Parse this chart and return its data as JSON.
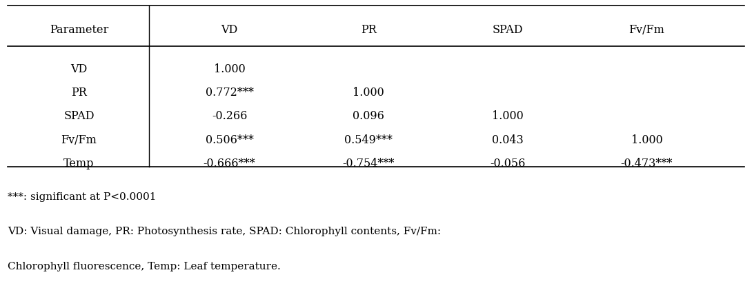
{
  "col_headers": [
    "Parameter",
    "VD",
    "PR",
    "SPAD",
    "Fv/Fm"
  ],
  "row_labels": [
    "VD",
    "PR",
    "SPAD",
    "Fv/Fm",
    "Temp"
  ],
  "table_data": [
    [
      "1.000",
      "",
      "",
      ""
    ],
    [
      "0.772***",
      "1.000",
      "",
      ""
    ],
    [
      "-0.266",
      "0.096",
      "1.000",
      ""
    ],
    [
      "0.506***",
      "0.549***",
      "0.043",
      "1.000"
    ],
    [
      "-0.666***",
      "-0.754***",
      "-0.056",
      "-0.473***"
    ]
  ],
  "footnote1": "***: significant at P<0.0001",
  "footnote2": "VD: Visual damage, PR: Photosynthesis rate, SPAD: Chlorophyll contents, Fv/Fm:",
  "footnote3": "Chlorophyll fluorescence, Temp: Leaf temperature.",
  "bg_color": "#ffffff",
  "text_color": "#000000",
  "line_color": "#000000",
  "font_size": 11.5,
  "footnote_font_size": 11.0
}
